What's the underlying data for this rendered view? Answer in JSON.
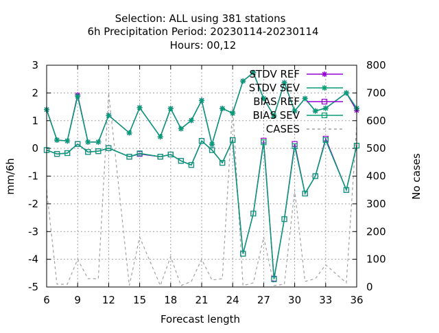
{
  "chart_data": {
    "type": "line",
    "title_lines": [
      "Selection: ALL using   381 stations",
      "6h Precipitation   Period: 20230114-20230114",
      "Hours:  00,12"
    ],
    "xlabel": "Forecast length",
    "ylabel": "mm/6h",
    "y2label": "No cases",
    "xlim": [
      6,
      36
    ],
    "ylim": [
      -5,
      3
    ],
    "y2lim": [
      0,
      800
    ],
    "xticks": [
      6,
      9,
      12,
      15,
      18,
      21,
      24,
      27,
      30,
      33,
      36
    ],
    "yticks": [
      -5,
      -4,
      -3,
      -2,
      -1,
      0,
      1,
      2,
      3
    ],
    "y2ticks": [
      0,
      100,
      200,
      300,
      400,
      500,
      600,
      700,
      800
    ],
    "grid": true,
    "legend_position": "top-right",
    "x": [
      6,
      7,
      8,
      9,
      10,
      11,
      12,
      14,
      15,
      17,
      18,
      19,
      20,
      21,
      22,
      23,
      24,
      25,
      26,
      27,
      28,
      29,
      30,
      31,
      32,
      33,
      35,
      36
    ],
    "series": [
      {
        "name": "STDV REF",
        "axis": "y",
        "marker": "star",
        "dash": false,
        "color": "#9400d3",
        "values": [
          1.4,
          0.3,
          0.27,
          1.93,
          0.23,
          0.23,
          1.19,
          0.56,
          1.47,
          0.42,
          1.44,
          0.71,
          1.01,
          1.73,
          0.15,
          1.44,
          1.27,
          2.43,
          2.73,
          1.8,
          1.17,
          2.37,
          1.35,
          1.8,
          1.35,
          1.45,
          2.0,
          1.37
        ]
      },
      {
        "name": "STDV SEV",
        "axis": "y",
        "marker": "star",
        "dash": false,
        "color": "#009e73",
        "values": [
          1.4,
          0.3,
          0.27,
          1.88,
          0.23,
          0.23,
          1.19,
          0.56,
          1.47,
          0.42,
          1.44,
          0.71,
          1.01,
          1.73,
          0.15,
          1.44,
          1.27,
          2.43,
          2.73,
          1.8,
          1.17,
          2.37,
          1.35,
          1.8,
          1.35,
          1.45,
          2.0,
          1.45
        ]
      },
      {
        "name": "BIAS REF",
        "axis": "y",
        "marker": "square",
        "dash": false,
        "color": "#9400d3",
        "values": [
          -0.06,
          -0.2,
          -0.17,
          0.16,
          -0.13,
          -0.1,
          0.01,
          -0.3,
          -0.2,
          -0.3,
          -0.22,
          -0.45,
          -0.6,
          0.27,
          -0.06,
          -0.52,
          0.3,
          -3.8,
          -2.35,
          0.28,
          -4.7,
          -2.55,
          0.16,
          -1.63,
          -1.0,
          0.35,
          -1.5,
          0.1
        ]
      },
      {
        "name": "BIAS SEV",
        "axis": "y",
        "marker": "square",
        "dash": false,
        "color": "#009e73",
        "values": [
          -0.06,
          -0.2,
          -0.17,
          0.16,
          -0.13,
          -0.1,
          0.01,
          -0.3,
          -0.18,
          -0.3,
          -0.22,
          -0.45,
          -0.6,
          0.27,
          -0.06,
          -0.52,
          0.3,
          -3.8,
          -2.35,
          0.22,
          -4.72,
          -2.55,
          0.08,
          -1.63,
          -1.0,
          0.3,
          -1.5,
          0.1
        ]
      },
      {
        "name": "CASES",
        "axis": "y2",
        "marker": "none",
        "dash": true,
        "color": "#a0a0a0",
        "values": [
          350,
          10,
          10,
          100,
          30,
          30,
          700,
          5,
          180,
          5,
          110,
          5,
          20,
          100,
          25,
          30,
          650,
          5,
          15,
          180,
          5,
          10,
          350,
          20,
          30,
          80,
          15,
          580
        ]
      }
    ]
  }
}
